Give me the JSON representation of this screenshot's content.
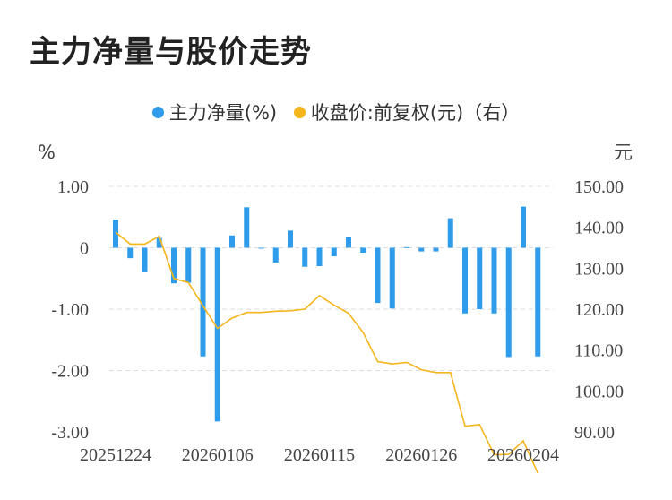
{
  "title": "主力净量与股价走势",
  "chart_data": {
    "type": "bar+line",
    "title": "主力净量与股价走势",
    "legend": [
      {
        "name": "主力净量(%)",
        "color": "#2f9ceb",
        "series": "net"
      },
      {
        "name": "收盘价:前复权(元)（右）",
        "color": "#f5b51c",
        "series": "price"
      }
    ],
    "left_axis": {
      "unit": "%",
      "range": [
        -3.0,
        1.0
      ],
      "ticks": [
        "1.00",
        "0",
        "-1.00",
        "-2.00",
        "-3.00"
      ]
    },
    "right_axis": {
      "unit": "元",
      "range": [
        90.0,
        150.0
      ],
      "ticks": [
        "150.00",
        "140.00",
        "130.00",
        "120.00",
        "110.00",
        "100.00",
        "90.00"
      ]
    },
    "x_tick_labels": [
      "20251224",
      "20260106",
      "20260115",
      "20260126",
      "20260204"
    ],
    "x_tick_positions": [
      0,
      7,
      14,
      21,
      28
    ],
    "net_values": [
      0.46,
      -0.17,
      -0.4,
      0.16,
      -0.58,
      -0.57,
      -1.77,
      -2.83,
      0.2,
      0.66,
      0.0,
      -0.24,
      0.28,
      -0.31,
      -0.3,
      -0.14,
      0.17,
      -0.08,
      -0.9,
      -0.99,
      0.01,
      -0.06,
      -0.06,
      0.48,
      -1.07,
      -1.0,
      -1.07,
      -1.78,
      0.67,
      -1.77
    ],
    "price_values": [
      138.8,
      135.9,
      135.9,
      137.8,
      127.5,
      126.5,
      120.8,
      115.3,
      117.8,
      119.2,
      119.2,
      119.5,
      119.6,
      120.0,
      123.3,
      121.0,
      119.0,
      114.3,
      107.2,
      106.6,
      107.0,
      105.2,
      104.5,
      104.5,
      91.4,
      91.8,
      84.4,
      84.5,
      87.8,
      79.9
    ]
  }
}
